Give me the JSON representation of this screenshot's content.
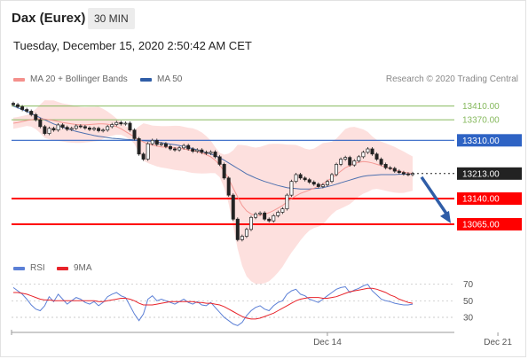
{
  "header": {
    "instrument": "Dax (Eurex)",
    "interval": "30 MIN",
    "timestamp": "Tuesday, December 15, 2020 2:50:42 AM CET",
    "copyright": "Research © 2020 Trading Central"
  },
  "legend": {
    "bollinger": {
      "label": "MA 20 + Bollinger Bands",
      "color": "#f4908c"
    },
    "ma50": {
      "label": "MA 50",
      "color": "#2f5da7"
    },
    "rsi": {
      "label": "RSI",
      "color": "#5b7fd6"
    },
    "rsi_ma": {
      "label": "9MA",
      "color": "#e8232a"
    }
  },
  "colors": {
    "resistance": "#86b95d",
    "pivot": "#2e63c4",
    "support": "#ff0000",
    "last_price": "#222222",
    "arrow": "#2f5da7",
    "candle_up": "#ffffff",
    "candle_down": "#222222",
    "band_fill": "#fde0de"
  },
  "levels": [
    {
      "value": 13410.0,
      "label": "13410.00",
      "kind": "resistance"
    },
    {
      "value": 13370.0,
      "label": "13370.00",
      "kind": "resistance"
    },
    {
      "value": 13310.0,
      "label": "13310.00",
      "kind": "pivot"
    },
    {
      "value": 13213.0,
      "label": "13213.00",
      "kind": "last"
    },
    {
      "value": 13140.0,
      "label": "13140.00",
      "kind": "support"
    },
    {
      "value": 13065.0,
      "label": "13065.00",
      "kind": "support"
    }
  ],
  "chart_data": [
    {
      "type": "candlestick",
      "name": "price",
      "ylim": [
        12990,
        13435
      ],
      "x_ticks": [
        {
          "label": "Dec 14",
          "index": 70
        },
        {
          "label": "Dec 21",
          "index": 108
        }
      ],
      "series": [
        {
          "name": "close",
          "values": [
            13414,
            13408,
            13400,
            13395,
            13385,
            13370,
            13350,
            13330,
            13345,
            13340,
            13355,
            13348,
            13342,
            13345,
            13352,
            13350,
            13346,
            13342,
            13345,
            13338,
            13340,
            13350,
            13356,
            13362,
            13358,
            13360,
            13340,
            13315,
            13270,
            13255,
            13300,
            13310,
            13298,
            13300,
            13292,
            13285,
            13282,
            13288,
            13295,
            13285,
            13278,
            13282,
            13275,
            13272,
            13276,
            13262,
            13240,
            13200,
            13150,
            13080,
            13020,
            13030,
            13050,
            13085,
            13095,
            13098,
            13080,
            13075,
            13090,
            13100,
            13110,
            13150,
            13190,
            13210,
            13200,
            13195,
            13188,
            13182,
            13175,
            13180,
            13190,
            13210,
            13240,
            13255,
            13260,
            13238,
            13250,
            13262,
            13275,
            13285,
            13270,
            13255,
            13240,
            13230,
            13228,
            13220,
            13216,
            13212,
            13210,
            13213
          ]
        },
        {
          "name": "MA 20",
          "values": [
            13360,
            13362,
            13365,
            13368,
            13370,
            13372,
            13373,
            13372,
            13370,
            13368,
            13365,
            13362,
            13360,
            13358,
            13356,
            13355,
            13355,
            13356,
            13357,
            13358,
            13358,
            13357,
            13354,
            13350,
            13344,
            13336,
            13328,
            13320,
            13312,
            13305,
            13300,
            13296,
            13293,
            13291,
            13290,
            13289,
            13288,
            13287,
            13285,
            13282,
            13280,
            13277,
            13273,
            13268,
            13262,
            13252,
            13238,
            13220,
            13198,
            13170,
            13145,
            13120,
            13104,
            13095,
            13090,
            13091,
            13094,
            13099,
            13105,
            13112,
            13120,
            13130,
            13140,
            13148,
            13155,
            13160,
            13165,
            13170,
            13176,
            13183,
            13192,
            13200,
            13210,
            13220,
            13230,
            13236,
            13242,
            13246,
            13248,
            13247,
            13244,
            13240,
            13236,
            13232,
            13228,
            13224,
            13220,
            13217,
            13215,
            13213
          ]
        },
        {
          "name": "MA 50",
          "values": [
            13410,
            13405,
            13400,
            13394,
            13388,
            13382,
            13376,
            13370,
            13364,
            13358,
            13353,
            13348,
            13344,
            13340,
            13336,
            13333,
            13330,
            13327,
            13324,
            13322,
            13320,
            13318,
            13316,
            13315,
            13314,
            13313,
            13312,
            13311,
            13310,
            13309,
            13308,
            13307,
            13305,
            13303,
            13301,
            13299,
            13297,
            13295,
            13292,
            13289,
            13286,
            13282,
            13278,
            13274,
            13270,
            13265,
            13259,
            13252,
            13244,
            13236,
            13228,
            13220,
            13212,
            13206,
            13200,
            13195,
            13190,
            13186,
            13182,
            13178,
            13175,
            13172,
            13170,
            13169,
            13168,
            13168,
            13168,
            13169,
            13170,
            13172,
            13175,
            13178,
            13182,
            13186,
            13190,
            13194,
            13198,
            13202,
            13205,
            13207,
            13208,
            13209,
            13210,
            13210,
            13210,
            13210,
            13211,
            13211,
            13212,
            13212
          ]
        }
      ]
    },
    {
      "type": "line",
      "name": "RSI panel",
      "ylim": [
        15,
        75
      ],
      "y_ticks": [
        70,
        50,
        30
      ],
      "series": [
        {
          "name": "RSI",
          "values": [
            66,
            62,
            58,
            52,
            45,
            40,
            38,
            44,
            55,
            49,
            58,
            52,
            46,
            50,
            54,
            52,
            48,
            46,
            49,
            44,
            48,
            55,
            58,
            60,
            56,
            54,
            44,
            34,
            26,
            34,
            52,
            56,
            50,
            52,
            50,
            48,
            46,
            49,
            52,
            48,
            46,
            49,
            45,
            44,
            48,
            42,
            36,
            30,
            26,
            22,
            20,
            24,
            32,
            38,
            42,
            44,
            40,
            38,
            44,
            48,
            50,
            58,
            62,
            64,
            58,
            56,
            52,
            50,
            48,
            52,
            56,
            60,
            64,
            66,
            67,
            60,
            63,
            65,
            68,
            70,
            62,
            57,
            52,
            50,
            49,
            47,
            46,
            45,
            45,
            46
          ]
        },
        {
          "name": "9MA",
          "values": [
            60,
            60,
            59,
            58,
            56,
            54,
            52,
            51,
            51,
            50,
            50,
            50,
            50,
            50,
            50,
            50,
            50,
            50,
            50,
            49,
            49,
            50,
            51,
            52,
            53,
            53,
            52,
            50,
            47,
            45,
            45,
            45,
            46,
            47,
            48,
            49,
            49,
            49,
            49,
            49,
            49,
            48,
            48,
            47,
            47,
            46,
            45,
            43,
            40,
            37,
            34,
            31,
            29,
            28,
            28,
            29,
            31,
            33,
            35,
            38,
            41,
            44,
            47,
            50,
            52,
            53,
            54,
            54,
            54,
            53,
            53,
            54,
            55,
            57,
            59,
            61,
            62,
            63,
            64,
            65,
            65,
            64,
            62,
            60,
            57,
            55,
            52,
            50,
            48,
            47
          ]
        }
      ]
    }
  ]
}
